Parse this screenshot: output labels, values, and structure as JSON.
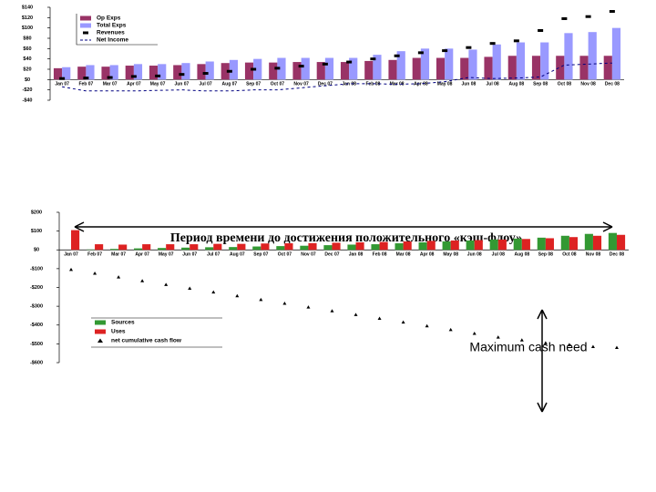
{
  "chart_data": [
    {
      "type": "combo",
      "categories": [
        "Jan 07",
        "Feb 07",
        "Mar 07",
        "Apr 07",
        "May 07",
        "Jun 07",
        "Jul 07",
        "Aug 07",
        "Sep 07",
        "Oct 07",
        "Nov 07",
        "Dec 07",
        "Jan 08",
        "Feb 08",
        "Mar 08",
        "Apr 08",
        "May 08",
        "Jun 08",
        "Jul 08",
        "Aug 08",
        "Sep 08",
        "Oct 08",
        "Nov 08",
        "Dec 08"
      ],
      "ylim": [
        -40,
        140
      ],
      "yticks": [
        {
          "value": -40,
          "label": "-$40"
        },
        {
          "value": -20,
          "label": "-$20"
        },
        {
          "value": 0,
          "label": "$0"
        },
        {
          "value": 20,
          "label": "$20"
        },
        {
          "value": 40,
          "label": "$40"
        },
        {
          "value": 60,
          "label": "$60"
        },
        {
          "value": 80,
          "label": "$80"
        },
        {
          "value": 100,
          "label": "$100"
        },
        {
          "value": 120,
          "label": "$120"
        },
        {
          "value": 140,
          "label": "$140"
        }
      ],
      "series": [
        {
          "name": "Op Exps",
          "kind": "bar",
          "color": "#993366",
          "values": [
            22,
            25,
            25,
            27,
            27,
            28,
            30,
            32,
            33,
            33,
            34,
            34,
            34,
            36,
            38,
            42,
            42,
            42,
            44,
            46,
            46,
            46,
            46,
            46
          ]
        },
        {
          "name": "Total Exps",
          "kind": "bar",
          "color": "#9999ff",
          "values": [
            24,
            28,
            28,
            30,
            30,
            32,
            35,
            38,
            40,
            42,
            42,
            42,
            42,
            48,
            55,
            60,
            60,
            58,
            68,
            72,
            72,
            90,
            92,
            100
          ]
        },
        {
          "name": "Revenues",
          "kind": "marker",
          "color": "#000000",
          "values": [
            2,
            3,
            4,
            6,
            7,
            10,
            12,
            16,
            20,
            22,
            26,
            30,
            34,
            40,
            46,
            52,
            56,
            62,
            70,
            75,
            95,
            118,
            122,
            132
          ]
        },
        {
          "name": "Net Income",
          "kind": "line",
          "color": "#000080",
          "values": [
            -14,
            -22,
            -22,
            -22,
            -21,
            -20,
            -22,
            -22,
            -20,
            -20,
            -16,
            -12,
            -8,
            -8,
            -9,
            -8,
            -4,
            4,
            2,
            3,
            5,
            28,
            30,
            32
          ]
        }
      ]
    },
    {
      "type": "combo",
      "categories": [
        "Jan 07",
        "Feb 07",
        "Mar 07",
        "Apr 07",
        "May 07",
        "Jun 07",
        "Jul 07",
        "Aug 07",
        "Sep 07",
        "Oct 07",
        "Nov 07",
        "Dec 07",
        "Jan 08",
        "Feb 08",
        "Mar 08",
        "Apr 08",
        "May 08",
        "Jun 08",
        "Jul 08",
        "Aug 08",
        "Sep 08",
        "Oct 08",
        "Nov 08",
        "Dec 08"
      ],
      "ylim": [
        -600,
        200
      ],
      "yticks": [
        {
          "value": -600,
          "label": "-$600"
        },
        {
          "value": -500,
          "label": "-$500"
        },
        {
          "value": -400,
          "label": "-$400"
        },
        {
          "value": -300,
          "label": "-$300"
        },
        {
          "value": -200,
          "label": "-$200"
        },
        {
          "value": -100,
          "label": "-$100"
        },
        {
          "value": 0,
          "label": "$0"
        },
        {
          "value": 100,
          "label": "$100"
        },
        {
          "value": 200,
          "label": "$200"
        }
      ],
      "series": [
        {
          "name": "Sources",
          "kind": "bar",
          "color": "#339933",
          "values": [
            0,
            2,
            5,
            8,
            10,
            12,
            14,
            15,
            18,
            20,
            22,
            25,
            28,
            30,
            35,
            40,
            45,
            50,
            55,
            60,
            65,
            75,
            85,
            90
          ]
        },
        {
          "name": "Uses",
          "kind": "bar",
          "color": "#dd2222",
          "values": [
            105,
            30,
            28,
            30,
            30,
            30,
            32,
            32,
            34,
            35,
            36,
            38,
            40,
            42,
            45,
            48,
            50,
            52,
            55,
            58,
            62,
            68,
            75,
            80
          ]
        },
        {
          "name": "net cumulative cash flow",
          "kind": "triangle",
          "color": "#000000",
          "values": [
            -105,
            -125,
            -145,
            -165,
            -185,
            -205,
            -225,
            -245,
            -265,
            -285,
            -305,
            -325,
            -345,
            -365,
            -385,
            -405,
            -425,
            -445,
            -465,
            -480,
            -495,
            -505,
            -515,
            -520
          ]
        }
      ],
      "annotations": [
        "Период времени до достижения положительного «кэш-флоу»",
        "Maximum cash need"
      ]
    }
  ]
}
